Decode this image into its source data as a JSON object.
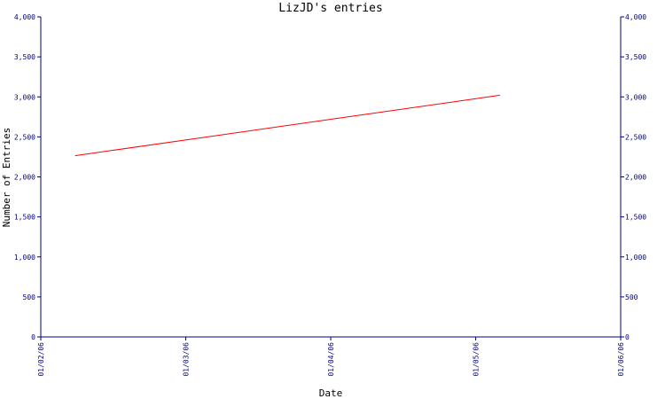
{
  "chart_data": {
    "type": "line",
    "title": "LizJD's entries",
    "xlabel": "Date",
    "ylabel": "Number of Entries",
    "x_ticks": [
      "01/02/06",
      "01/03/06",
      "01/04/06",
      "01/05/06",
      "01/06/06"
    ],
    "y_ticks": [
      "0",
      "500",
      "1,000",
      "1,500",
      "2,000",
      "2,500",
      "3,000",
      "3,500",
      "4,000"
    ],
    "xlim": [
      "2006-01-02",
      "2006-01-06"
    ],
    "ylim": [
      0,
      4000
    ],
    "series": [
      {
        "x": [
          "2006-01-02T05:40",
          "2006-01-05T04:00"
        ],
        "values": [
          2265,
          3020
        ]
      }
    ],
    "y_axis_both_sides": true,
    "grid": false,
    "colors": {
      "line": "#ff0000",
      "axis": "#000080",
      "tick_text": "#000080",
      "label_text": "#000080"
    }
  }
}
